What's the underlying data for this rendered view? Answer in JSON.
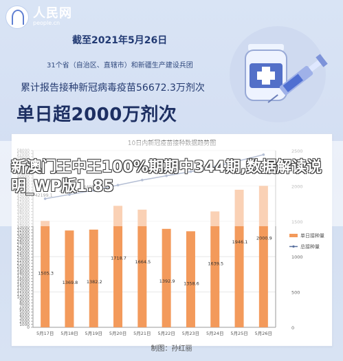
{
  "branding": {
    "logo_text": "人民网",
    "logo_url": "people.cn"
  },
  "header": {
    "date_line": "截至2021年5月26日",
    "region_line": "31个省（自治区、直辖市）和新疆生产建设兵团",
    "total_line": "累计报告接种新冠病毒疫苗56672.3万剂次",
    "big_line": "单日超2000万剂次"
  },
  "chart_title": "10日内新冠疫苗接种数据趋势图",
  "overlay_title": "新澳门王中王100%期期中344期,数据解读说明_WP版1.85",
  "footer": {
    "credit": "制图：孙红丽"
  },
  "colors": {
    "bar": "#f39a5b",
    "line": "#59709f",
    "overlay": "#ffffff"
  },
  "chart_data": {
    "type": "bar",
    "title": "10日内新冠疫苗接种数据趋势图",
    "categories": [
      "5月17日",
      "5月18日",
      "5月19日",
      "5月20日",
      "5月21日",
      "5月22日",
      "5月23日",
      "5月24日",
      "5月25日",
      "5月26日"
    ],
    "series": [
      {
        "name": "单日接种量",
        "type": "bar",
        "values": [
          1505.3,
          1369.8,
          1382.2,
          1718.7,
          1664.5,
          1392.9,
          1358.6,
          1639.5,
          1946.1,
          2000.9
        ]
      },
      {
        "name": "总接种量",
        "type": "line",
        "values": [
          42199.1,
          43568.9,
          44951.1,
          46669.8,
          48334.3,
          49727.2,
          51085.8,
          52725.3,
          54671.4,
          56672.3
        ]
      }
    ],
    "left_axis": {
      "ylim": [
        0,
        58000
      ],
      "ticks": [
        0,
        1000,
        2000,
        3000,
        4000,
        5000,
        6000,
        7000,
        8000,
        9000,
        10000,
        11000,
        12000,
        13000,
        14000,
        15000,
        16000,
        17000,
        18000,
        19000,
        20000,
        21000,
        22000,
        23000,
        24000,
        25000,
        26000,
        27000,
        28000,
        29000,
        30000,
        31000,
        32000,
        33000,
        34000,
        35000,
        36000,
        37000,
        38000,
        39000,
        40000,
        41000,
        42000,
        43000,
        44000,
        45000,
        46000,
        47000,
        48000,
        49000,
        50000,
        51000,
        52000,
        53000,
        54000,
        55000,
        56000,
        57000,
        58000
      ]
    },
    "right_axis": {
      "ylim": [
        0,
        2500
      ],
      "ticks": [
        0,
        500,
        1000,
        1500,
        2000,
        2500
      ]
    },
    "legend": {
      "position": "right",
      "items": [
        "单日接种量",
        "总接种量"
      ]
    },
    "visible_line_labels": [
      {
        "index": 0,
        "text": "42199.1"
      },
      {
        "index": 1,
        "text": "43568.9"
      },
      {
        "index": 2,
        "text": "44951.1"
      }
    ]
  }
}
